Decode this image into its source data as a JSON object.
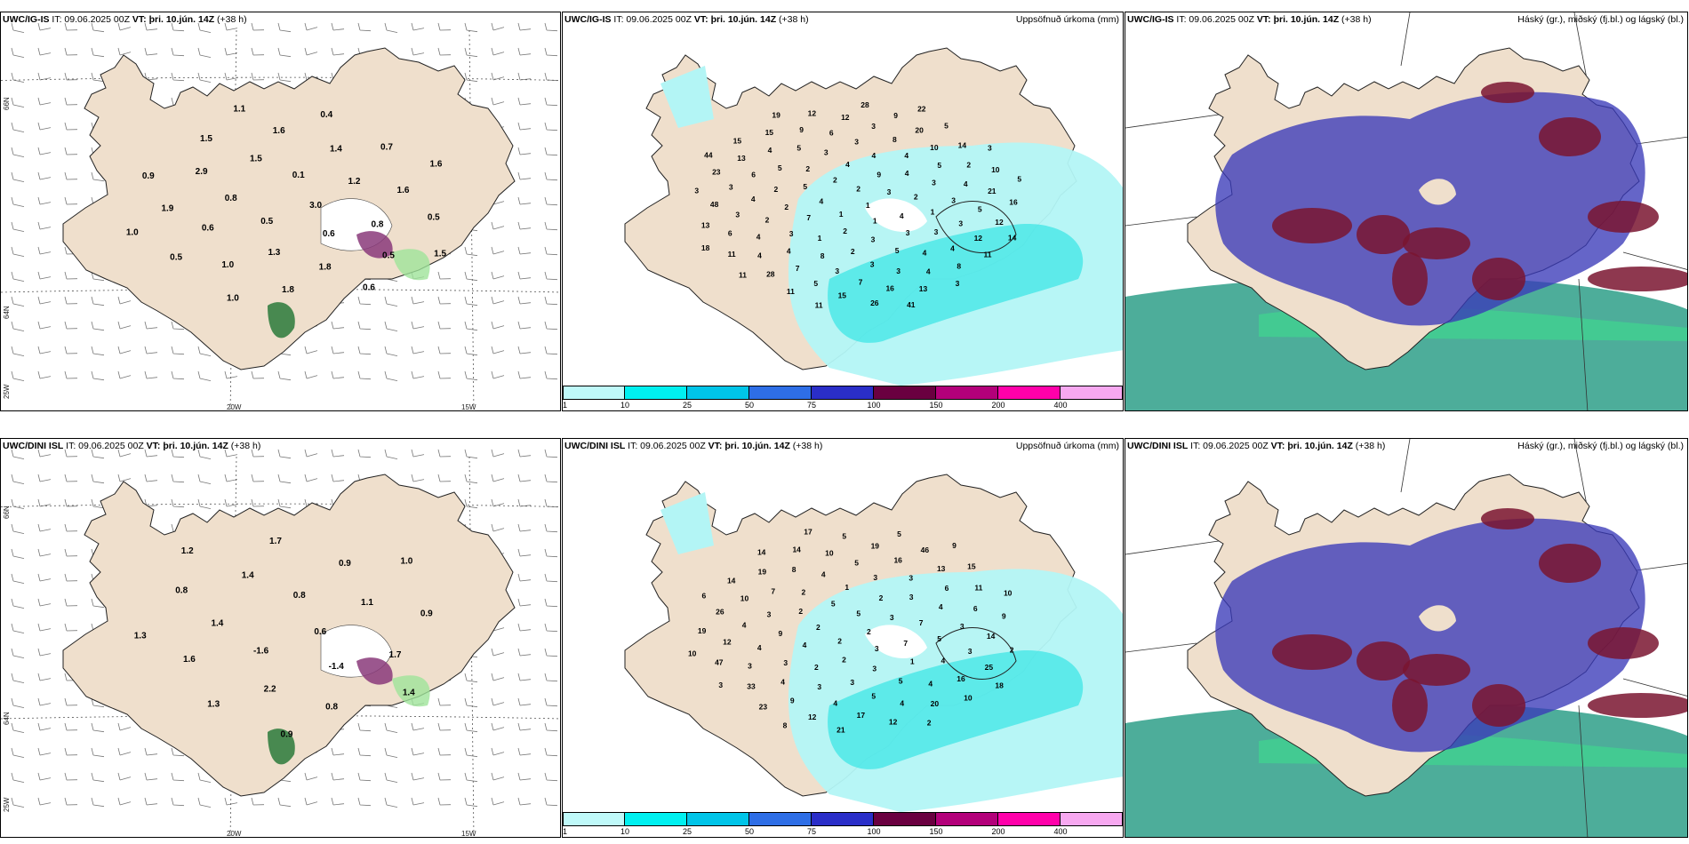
{
  "panels": [
    {
      "id": "p1",
      "type": "weather",
      "model": "UWC/IG-IS",
      "it": "IT: 09.06.2025 00Z",
      "vt_prefix": "VT:",
      "vt": "þri. 10.jún. 14Z",
      "lead": "(+38 h)",
      "lat_labels": [
        "66N",
        "64N"
      ],
      "lon_labels": [
        "25W",
        "20W",
        "15W"
      ],
      "values": [
        "3.0",
        "0.5",
        "0.1",
        "0.6",
        "0.8",
        "1.2",
        "1.3",
        "1.5",
        "0.8",
        "0.6",
        "1.4",
        "1.8",
        "2.9",
        "1.6",
        "1.0",
        "1.6",
        "0.5",
        "1.9",
        "0.7",
        "1.8",
        "1.5",
        "0.5",
        "0.5",
        "0.4",
        "0.6",
        "0.9",
        "1.6",
        "1.0",
        "1.1",
        "1.5",
        "1.0"
      ]
    },
    {
      "id": "p2",
      "type": "precip",
      "model": "UWC/IG-IS",
      "it": "IT: 09.06.2025 00Z",
      "vt_prefix": "VT:",
      "vt": "þri. 10.jún. 14Z",
      "lead": "(+38 h)",
      "right_title": "Uppsöfnuð úrkoma (mm)",
      "values": [
        "1",
        "1",
        "2",
        "1",
        "4",
        "3",
        "2",
        "2",
        "4",
        "7",
        "9",
        "3",
        "5",
        "2",
        "1",
        "4",
        "3",
        "2",
        "4",
        "2",
        "2",
        "1",
        "3",
        "4",
        "5",
        "2",
        "3",
        "8",
        "3",
        "3",
        "2",
        "4",
        "3",
        "5",
        "3",
        "4",
        "3",
        "4",
        "4",
        "5",
        "3",
        "5",
        "3",
        "4",
        "8",
        "3",
        "6",
        "4",
        "7",
        "6",
        "4",
        "3",
        "10",
        "7",
        "4",
        "5",
        "4",
        "3",
        "4",
        "3",
        "2",
        "5",
        "9",
        "12",
        "6",
        "20",
        "16",
        "13",
        "21",
        "28",
        "12",
        "8",
        "48",
        "14",
        "15",
        "15",
        "12",
        "11",
        "9",
        "13",
        "23",
        "10",
        "11",
        "12",
        "11",
        "13",
        "5",
        "26",
        "15",
        "16",
        "11",
        "28",
        "3",
        "3",
        "3",
        "11",
        "19",
        "14",
        "18",
        "22",
        "41",
        "44",
        "5"
      ]
    },
    {
      "id": "p3",
      "type": "cloud",
      "model": "UWC/IG-IS",
      "it": "IT: 09.06.2025 00Z",
      "vt_prefix": "VT:",
      "vt": "þri. 10.jún. 14Z",
      "lead": "(+38 h)",
      "right_title": "Háský (gr.), miðský (fj.bl.) og lágský (bl.)"
    },
    {
      "id": "p4",
      "type": "weather",
      "model": "UWC/DINI ISL",
      "it": "IT: 09.06.2025 00Z",
      "vt_prefix": "VT:",
      "vt": "þri. 10.jún. 14Z",
      "lead": "(+38 h)",
      "lat_labels": [
        "66N",
        "64N"
      ],
      "lon_labels": [
        "25W",
        "20W",
        "15W"
      ],
      "values": [
        "0.6",
        "-1.6",
        "0.8",
        "-1.4",
        "1.4",
        "1.1",
        "2.2",
        "1.4",
        "1.7",
        "1.6",
        "0.9",
        "0.8",
        "0.8",
        "0.9",
        "1.3",
        "1.7",
        "1.4",
        "1.3",
        "1.0",
        "0.9",
        "1.2"
      ]
    },
    {
      "id": "p5",
      "type": "precip",
      "model": "UWC/DINI ISL",
      "it": "IT: 09.06.2025 00Z",
      "vt_prefix": "VT:",
      "vt": "þri. 10.jún. 14Z",
      "lead": "(+38 h)",
      "right_title": "Uppsöfnuð úrkoma (mm)",
      "values": [
        "2",
        "2",
        "5",
        "3",
        "2",
        "3",
        "2",
        "5",
        "7",
        "4",
        "2",
        "3",
        "2",
        "7",
        "2",
        "1",
        "1",
        "9",
        "3",
        "3",
        "2",
        "5",
        "3",
        "3",
        "5",
        "3",
        "4",
        "3",
        "4",
        "4",
        "4",
        "3",
        "5",
        "7",
        "3",
        "4",
        "5",
        "4",
        "4",
        "6",
        "4",
        "8",
        "3",
        "3",
        "16",
        "4",
        "10",
        "6",
        "9",
        "10",
        "16",
        "12",
        "13",
        "17",
        "19",
        "14",
        "33",
        "19",
        "20",
        "26",
        "11",
        "12",
        "14",
        "25",
        "47",
        "46",
        "12",
        "14",
        "9",
        "23",
        "5",
        "10",
        "19",
        "15",
        "21",
        "14",
        "2",
        "3",
        "5",
        "2",
        "6",
        "10",
        "8",
        "17",
        "18",
        "10",
        "9"
      ]
    },
    {
      "id": "p6",
      "type": "cloud",
      "model": "UWC/DINI ISL",
      "it": "IT: 09.06.2025 00Z",
      "vt_prefix": "VT:",
      "vt": "þri. 10.jún. 14Z",
      "lead": "(+38 h)",
      "right_title": "Háský (gr.), miðský (fj.bl.) og lágský (bl.)"
    }
  ],
  "colorbar": {
    "ticks": [
      "1",
      "10",
      "25",
      "50",
      "75",
      "100",
      "150",
      "200",
      "400"
    ],
    "colors": [
      "#bff9f9",
      "#00f0f0",
      "#00c4e8",
      "#2e6ee6",
      "#2a2ec8",
      "#6a0040",
      "#b3007a",
      "#ff00aa",
      "#f7a8f0"
    ]
  },
  "colors": {
    "land": "#efdfcc",
    "precip_light": "#b3f5f5",
    "precip_mid": "#3fe5e5",
    "cloud_high": "#7a1530",
    "cloud_mid": "#3a3ab8",
    "cloud_low": "#2e9f88"
  }
}
